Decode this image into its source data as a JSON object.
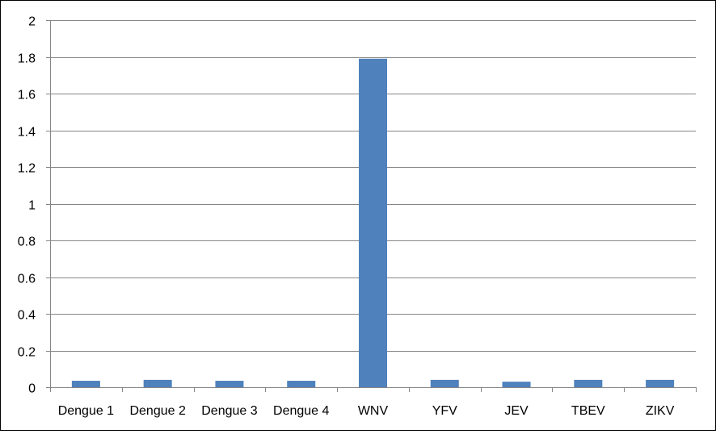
{
  "chart_data": {
    "type": "bar",
    "title": "",
    "xlabel": "",
    "ylabel": "",
    "categories": [
      "Dengue 1",
      "Dengue 2",
      "Dengue 3",
      "Dengue 4",
      "WNV",
      "YFV",
      "JEV",
      "TBEV",
      "ZIKV"
    ],
    "values": [
      0.035,
      0.04,
      0.035,
      0.035,
      1.79,
      0.04,
      0.03,
      0.04,
      0.04
    ],
    "ylim": [
      0,
      2
    ],
    "yticks": [
      "0",
      "0.2",
      "0.4",
      "0.6",
      "0.8",
      "1",
      "1.2",
      "1.4",
      "1.6",
      "1.8",
      "2"
    ],
    "grid": true,
    "legend": "none",
    "bar_color": "#4F81BD",
    "grid_color": "#868686",
    "axis_color": "#868686"
  }
}
